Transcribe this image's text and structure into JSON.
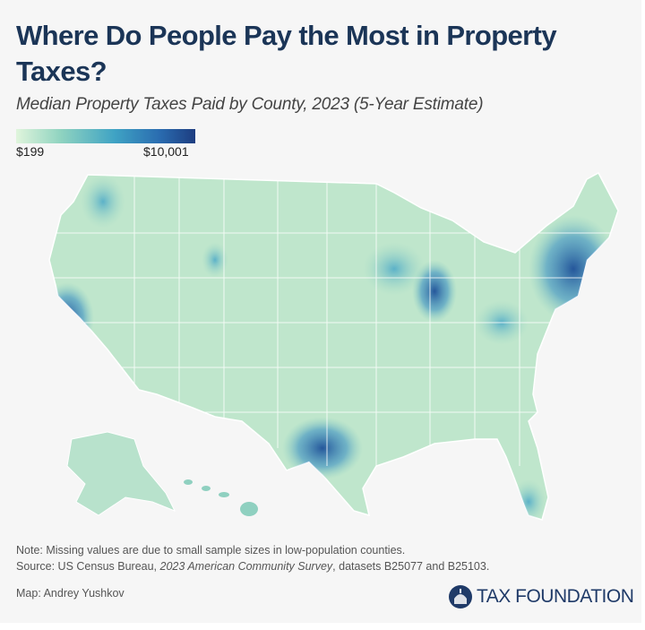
{
  "title": "Where Do People Pay the Most in Property Taxes?",
  "subtitle": "Median Property Taxes Paid by County, 2023 (5-Year Estimate)",
  "legend": {
    "min_label": "$199",
    "max_label": "$10,001",
    "colors": [
      "#e0f5dc",
      "#8fd3c0",
      "#3fa3c4",
      "#2a6cb0",
      "#1d3d80"
    ]
  },
  "notes": {
    "note": "Note: Missing values are due to small sample sizes in low-population counties.",
    "source_prefix": "Source: US Census Bureau, ",
    "source_title": "2023 American Community Survey",
    "source_suffix": ", datasets B25077 and B25103.",
    "credit": "Map: Andrey Yushkov"
  },
  "logo": {
    "text": "TAX FOUNDATION"
  }
}
